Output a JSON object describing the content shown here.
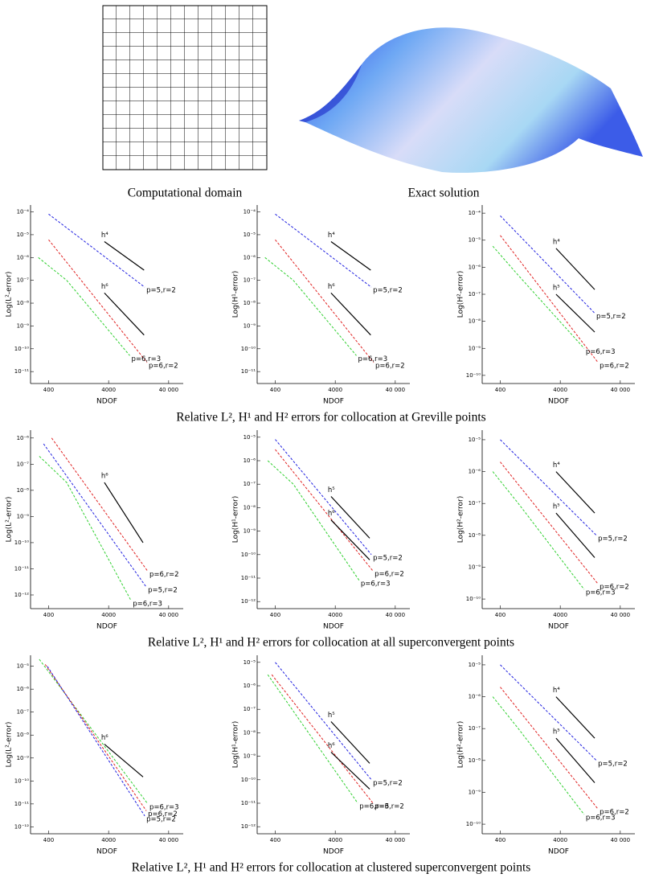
{
  "top_captions": [
    "Computational domain",
    "Exact solution"
  ],
  "row_captions": [
    "Relative L², H¹ and H² errors for collocation at Greville points",
    "Relative L², H¹ and H² errors for collocation at all superconvergent points",
    "Relative L², H¹ and H² errors for collocation at clustered superconvergent points"
  ],
  "chart_data": [
    {
      "type": "line",
      "log_x": true,
      "log_y": true,
      "x_label": "NDOF",
      "y_label": "Log(L²-error)",
      "xlim": [
        200,
        70000
      ],
      "xticks": [
        400,
        4000,
        {
          "value": 40000,
          "label": "40 000"
        }
      ],
      "ylim": [
        3e-12,
        0.0002
      ],
      "yticks": [
        {
          "value": 0.0001,
          "label": "10⁻⁴"
        },
        {
          "value": 1e-05,
          "label": "10⁻⁵"
        },
        {
          "value": 1e-06,
          "label": "10⁻⁶"
        },
        {
          "value": 1e-07,
          "label": "10⁻⁷"
        },
        {
          "value": 1e-08,
          "label": "10⁻⁸"
        },
        {
          "value": 1e-09,
          "label": "10⁻⁹"
        },
        {
          "value": 1e-10,
          "label": "10⁻¹⁰"
        },
        {
          "value": 1e-11,
          "label": "10⁻¹¹"
        }
      ],
      "series": [
        {
          "name": "p=5,r=2",
          "color": "#2020e0",
          "dashed": true,
          "x": [
            400,
            16000
          ],
          "values": [
            8e-05,
            5e-08
          ]
        },
        {
          "name": "p=6,r=2",
          "color": "#e02020",
          "dashed": true,
          "x": [
            400,
            17500
          ],
          "values": [
            6e-06,
            2.5e-11
          ]
        },
        {
          "name": "p=6,r=3",
          "color": "#30d030",
          "dashed": true,
          "x": [
            270,
            800,
            9000
          ],
          "values": [
            1e-06,
            1e-07,
            5e-11
          ]
        },
        {
          "name": "h⁴",
          "color": "#000000",
          "dashed": false,
          "x": [
            3400,
            15600
          ],
          "values": [
            5e-06,
            2.8e-07
          ]
        },
        {
          "name": "h⁶",
          "color": "#000000",
          "dashed": false,
          "x": [
            3400,
            15600
          ],
          "values": [
            2.8e-08,
            4e-10
          ]
        }
      ]
    },
    {
      "type": "line",
      "log_x": true,
      "log_y": true,
      "x_label": "NDOF",
      "y_label": "Log(H¹-error)",
      "xlim": [
        200,
        70000
      ],
      "xticks": [
        400,
        4000,
        {
          "value": 40000,
          "label": "40 000"
        }
      ],
      "ylim": [
        3e-12,
        0.0002
      ],
      "yticks": [
        {
          "value": 0.0001,
          "label": "10⁻⁴"
        },
        {
          "value": 1e-05,
          "label": "10⁻⁵"
        },
        {
          "value": 1e-06,
          "label": "10⁻⁶"
        },
        {
          "value": 1e-07,
          "label": "10⁻⁷"
        },
        {
          "value": 1e-08,
          "label": "10⁻⁸"
        },
        {
          "value": 1e-09,
          "label": "10⁻⁹"
        },
        {
          "value": 1e-10,
          "label": "10⁻¹⁰"
        },
        {
          "value": 1e-11,
          "label": "10⁻¹¹"
        }
      ],
      "series": [
        {
          "name": "p=5,r=2",
          "color": "#2020e0",
          "dashed": true,
          "x": [
            400,
            16000
          ],
          "values": [
            8e-05,
            5e-08
          ]
        },
        {
          "name": "p=6,r=2",
          "color": "#e02020",
          "dashed": true,
          "x": [
            400,
            17500
          ],
          "values": [
            6e-06,
            2.5e-11
          ]
        },
        {
          "name": "p=6,r=3",
          "color": "#30d030",
          "dashed": true,
          "x": [
            270,
            800,
            9000
          ],
          "values": [
            1e-06,
            1e-07,
            5e-11
          ]
        },
        {
          "name": "h⁴",
          "color": "#000000",
          "dashed": false,
          "x": [
            3400,
            15600
          ],
          "values": [
            5e-06,
            2.8e-07
          ]
        },
        {
          "name": "h⁶",
          "color": "#000000",
          "dashed": false,
          "x": [
            3400,
            15600
          ],
          "values": [
            2.8e-08,
            4e-10
          ]
        }
      ]
    },
    {
      "type": "line",
      "log_x": true,
      "log_y": true,
      "x_label": "NDOF",
      "y_label": "Log(H²-error)",
      "xlim": [
        200,
        70000
      ],
      "xticks": [
        400,
        4000,
        {
          "value": 40000,
          "label": "40 000"
        }
      ],
      "ylim": [
        5e-11,
        0.0002
      ],
      "yticks": [
        {
          "value": 0.0001,
          "label": "10⁻⁴"
        },
        {
          "value": 1e-05,
          "label": "10⁻⁵"
        },
        {
          "value": 1e-06,
          "label": "10⁻⁶"
        },
        {
          "value": 1e-07,
          "label": "10⁻⁷"
        },
        {
          "value": 1e-08,
          "label": "10⁻⁸"
        },
        {
          "value": 1e-09,
          "label": "10⁻⁹"
        },
        {
          "value": 1e-10,
          "label": "10⁻¹⁰"
        }
      ],
      "series": [
        {
          "name": "p=5,r=2",
          "color": "#2020e0",
          "dashed": true,
          "x": [
            400,
            15000
          ],
          "values": [
            8e-05,
            2e-08
          ]
        },
        {
          "name": "p=6,r=2",
          "color": "#e02020",
          "dashed": true,
          "x": [
            400,
            17000
          ],
          "values": [
            1.5e-05,
            3e-10
          ]
        },
        {
          "name": "p=6,r=3",
          "color": "#30d030",
          "dashed": true,
          "x": [
            300,
            800,
            10000
          ],
          "values": [
            6e-06,
            5e-07,
            1e-09
          ]
        },
        {
          "name": "h⁴",
          "color": "#000000",
          "dashed": false,
          "x": [
            3400,
            15000
          ],
          "values": [
            5e-06,
            1.5e-07
          ]
        },
        {
          "name": "h⁵",
          "color": "#000000",
          "dashed": false,
          "x": [
            3400,
            15000
          ],
          "values": [
            1e-07,
            4e-09
          ]
        }
      ]
    },
    {
      "type": "line",
      "log_x": true,
      "log_y": true,
      "x_label": "NDOF",
      "y_label": "Log(L²-error)",
      "xlim": [
        200,
        70000
      ],
      "xticks": [
        400,
        4000,
        {
          "value": 40000,
          "label": "40 000"
        }
      ],
      "ylim": [
        3e-13,
        2e-06
      ],
      "yticks": [
        {
          "value": 1e-06,
          "label": "10⁻⁶"
        },
        {
          "value": 1e-07,
          "label": "10⁻⁷"
        },
        {
          "value": 1e-08,
          "label": "10⁻⁸"
        },
        {
          "value": 1e-09,
          "label": "10⁻⁹"
        },
        {
          "value": 1e-10,
          "label": "10⁻¹⁰"
        },
        {
          "value": 1e-11,
          "label": "10⁻¹¹"
        },
        {
          "value": 1e-12,
          "label": "10⁻¹²"
        }
      ],
      "series": [
        {
          "name": "p=6,r=2",
          "color": "#e02020",
          "dashed": true,
          "x": [
            450,
            18000
          ],
          "values": [
            1e-06,
            8e-12
          ]
        },
        {
          "name": "p=5,r=2",
          "color": "#2020e0",
          "dashed": true,
          "x": [
            330,
            17000
          ],
          "values": [
            6e-07,
            2e-12
          ]
        },
        {
          "name": "p=6,r=3",
          "color": "#30d030",
          "dashed": true,
          "x": [
            280,
            800,
            9500
          ],
          "values": [
            2e-07,
            2e-08,
            6e-13
          ]
        },
        {
          "name": "h⁶",
          "color": "#000000",
          "dashed": false,
          "x": [
            3400,
            15000
          ],
          "values": [
            2e-08,
            1e-10
          ]
        }
      ]
    },
    {
      "type": "line",
      "log_x": true,
      "log_y": true,
      "x_label": "NDOF",
      "y_label": "Log(H¹-error)",
      "xlim": [
        200,
        70000
      ],
      "xticks": [
        400,
        4000,
        {
          "value": 40000,
          "label": "40 000"
        }
      ],
      "ylim": [
        5e-13,
        2e-05
      ],
      "yticks": [
        {
          "value": 1e-05,
          "label": "10⁻⁵"
        },
        {
          "value": 1e-06,
          "label": "10⁻⁶"
        },
        {
          "value": 1e-07,
          "label": "10⁻⁷"
        },
        {
          "value": 1e-08,
          "label": "10⁻⁸"
        },
        {
          "value": 1e-09,
          "label": "10⁻⁹"
        },
        {
          "value": 1e-10,
          "label": "10⁻¹⁰"
        },
        {
          "value": 1e-11,
          "label": "10⁻¹¹"
        },
        {
          "value": 1e-12,
          "label": "10⁻¹²"
        }
      ],
      "series": [
        {
          "name": "p=5,r=2",
          "color": "#2020e0",
          "dashed": true,
          "x": [
            400,
            16000
          ],
          "values": [
            8e-06,
            1e-10
          ]
        },
        {
          "name": "p=6,r=2",
          "color": "#e02020",
          "dashed": true,
          "x": [
            400,
            17000
          ],
          "values": [
            3e-06,
            2e-11
          ]
        },
        {
          "name": "p=6,r=3",
          "color": "#30d030",
          "dashed": true,
          "x": [
            300,
            800,
            10000
          ],
          "values": [
            1e-06,
            1e-07,
            8e-12
          ]
        },
        {
          "name": "h⁵",
          "color": "#000000",
          "dashed": false,
          "x": [
            3400,
            15000
          ],
          "values": [
            3e-08,
            5e-10
          ]
        },
        {
          "name": "h⁶",
          "color": "#000000",
          "dashed": false,
          "x": [
            3400,
            15000
          ],
          "values": [
            3e-09,
            6e-11
          ]
        }
      ]
    },
    {
      "type": "line",
      "log_x": true,
      "log_y": true,
      "x_label": "NDOF",
      "y_label": "Log(H²-error)",
      "xlim": [
        200,
        70000
      ],
      "xticks": [
        400,
        4000,
        {
          "value": 40000,
          "label": "40 000"
        }
      ],
      "ylim": [
        5e-11,
        2e-05
      ],
      "yticks": [
        {
          "value": 1e-05,
          "label": "10⁻⁵"
        },
        {
          "value": 1e-06,
          "label": "10⁻⁶"
        },
        {
          "value": 1e-07,
          "label": "10⁻⁷"
        },
        {
          "value": 1e-08,
          "label": "10⁻⁸"
        },
        {
          "value": 1e-09,
          "label": "10⁻⁹"
        },
        {
          "value": 1e-10,
          "label": "10⁻¹⁰"
        }
      ],
      "series": [
        {
          "name": "p=5,r=2",
          "color": "#2020e0",
          "dashed": true,
          "x": [
            400,
            16000
          ],
          "values": [
            1e-05,
            1e-08
          ]
        },
        {
          "name": "p=6,r=2",
          "color": "#e02020",
          "dashed": true,
          "x": [
            400,
            17000
          ],
          "values": [
            2e-06,
            3e-10
          ]
        },
        {
          "name": "p=6,r=3",
          "color": "#30d030",
          "dashed": true,
          "x": [
            300,
            800,
            10000
          ],
          "values": [
            1e-06,
            1e-07,
            2e-10
          ]
        },
        {
          "name": "h⁴",
          "color": "#000000",
          "dashed": false,
          "x": [
            3400,
            15000
          ],
          "values": [
            1e-06,
            5e-08
          ]
        },
        {
          "name": "h⁵",
          "color": "#000000",
          "dashed": false,
          "x": [
            3400,
            15000
          ],
          "values": [
            5e-08,
            2e-09
          ]
        }
      ]
    },
    {
      "type": "line",
      "log_x": true,
      "log_y": true,
      "x_label": "NDOF",
      "y_label": "Log(L²-error)",
      "xlim": [
        200,
        70000
      ],
      "xticks": [
        400,
        4000,
        {
          "value": 40000,
          "label": "40 000"
        }
      ],
      "ylim": [
        5e-13,
        3e-05
      ],
      "yticks": [
        {
          "value": 1e-05,
          "label": "10⁻⁵"
        },
        {
          "value": 1e-06,
          "label": "10⁻⁶"
        },
        {
          "value": 1e-07,
          "label": "10⁻⁷"
        },
        {
          "value": 1e-08,
          "label": "10⁻⁸"
        },
        {
          "value": 1e-09,
          "label": "10⁻⁹"
        },
        {
          "value": 1e-10,
          "label": "10⁻¹⁰"
        },
        {
          "value": 1e-11,
          "label": "10⁻¹¹"
        },
        {
          "value": 1e-12,
          "label": "10⁻¹²"
        }
      ],
      "series": [
        {
          "name": "p=6,r=3",
          "color": "#30d030",
          "dashed": true,
          "x": [
            280,
            18000
          ],
          "values": [
            2e-05,
            1e-11
          ]
        },
        {
          "name": "p=6,r=2",
          "color": "#e02020",
          "dashed": true,
          "x": [
            350,
            17000
          ],
          "values": [
            1.2e-05,
            5e-12
          ]
        },
        {
          "name": "p=5,r=2",
          "color": "#2020e0",
          "dashed": true,
          "x": [
            380,
            16000
          ],
          "values": [
            1e-05,
            3e-12
          ]
        },
        {
          "name": "h⁶",
          "color": "#000000",
          "dashed": false,
          "x": [
            3400,
            15000
          ],
          "values": [
            4e-09,
            1.5e-10
          ]
        }
      ]
    },
    {
      "type": "line",
      "log_x": true,
      "log_y": true,
      "x_label": "NDOF",
      "y_label": "Log(H¹-error)",
      "xlim": [
        200,
        70000
      ],
      "xticks": [
        400,
        4000,
        {
          "value": 40000,
          "label": "40 000"
        }
      ],
      "ylim": [
        5e-13,
        2e-05
      ],
      "yticks": [
        {
          "value": 1e-05,
          "label": "10⁻⁵"
        },
        {
          "value": 1e-06,
          "label": "10⁻⁶"
        },
        {
          "value": 1e-07,
          "label": "10⁻⁷"
        },
        {
          "value": 1e-08,
          "label": "10⁻⁸"
        },
        {
          "value": 1e-09,
          "label": "10⁻⁹"
        },
        {
          "value": 1e-10,
          "label": "10⁻¹⁰"
        },
        {
          "value": 1e-11,
          "label": "10⁻¹¹"
        },
        {
          "value": 1e-12,
          "label": "10⁻¹²"
        }
      ],
      "series": [
        {
          "name": "p=5,r=2",
          "color": "#2020e0",
          "dashed": true,
          "x": [
            400,
            16000
          ],
          "values": [
            1e-05,
            1e-10
          ]
        },
        {
          "name": "p=6,r=2",
          "color": "#e02020",
          "dashed": true,
          "x": [
            350,
            17000
          ],
          "values": [
            3e-06,
            1e-11
          ]
        },
        {
          "name": "p=6,r=3",
          "color": "#30d030",
          "dashed": true,
          "x": [
            300,
            9500
          ],
          "values": [
            3e-06,
            1e-11
          ]
        },
        {
          "name": "h⁵",
          "color": "#000000",
          "dashed": false,
          "x": [
            3400,
            15000
          ],
          "values": [
            3e-08,
            5e-10
          ]
        },
        {
          "name": "h⁶",
          "color": "#000000",
          "dashed": false,
          "x": [
            3400,
            15000
          ],
          "values": [
            1.5e-09,
            4e-11
          ]
        }
      ]
    },
    {
      "type": "line",
      "log_x": true,
      "log_y": true,
      "x_label": "NDOF",
      "y_label": "Log(H²-error)",
      "xlim": [
        200,
        70000
      ],
      "xticks": [
        400,
        4000,
        {
          "value": 40000,
          "label": "40 000"
        }
      ],
      "ylim": [
        5e-11,
        2e-05
      ],
      "yticks": [
        {
          "value": 1e-05,
          "label": "10⁻⁵"
        },
        {
          "value": 1e-06,
          "label": "10⁻⁶"
        },
        {
          "value": 1e-07,
          "label": "10⁻⁷"
        },
        {
          "value": 1e-08,
          "label": "10⁻⁸"
        },
        {
          "value": 1e-09,
          "label": "10⁻⁹"
        },
        {
          "value": 1e-10,
          "label": "10⁻¹⁰"
        }
      ],
      "series": [
        {
          "name": "p=5,r=2",
          "color": "#2020e0",
          "dashed": true,
          "x": [
            400,
            16000
          ],
          "values": [
            1e-05,
            1e-08
          ]
        },
        {
          "name": "p=6,r=2",
          "color": "#e02020",
          "dashed": true,
          "x": [
            400,
            17000
          ],
          "values": [
            2e-06,
            3e-10
          ]
        },
        {
          "name": "p=6,r=3",
          "color": "#30d030",
          "dashed": true,
          "x": [
            300,
            800,
            10000
          ],
          "values": [
            1e-06,
            1e-07,
            2e-10
          ]
        },
        {
          "name": "h⁴",
          "color": "#000000",
          "dashed": false,
          "x": [
            3400,
            15000
          ],
          "values": [
            1e-06,
            5e-08
          ]
        },
        {
          "name": "h⁵",
          "color": "#000000",
          "dashed": false,
          "x": [
            3400,
            15000
          ],
          "values": [
            5e-08,
            2e-09
          ]
        }
      ]
    }
  ]
}
